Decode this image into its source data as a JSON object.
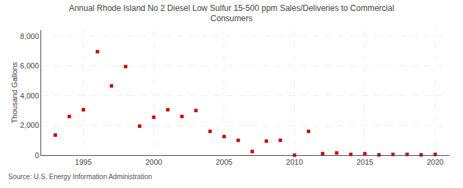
{
  "chart_data": {
    "type": "scatter",
    "title": "Annual Rhode Island No 2 Diesel Low Sulfur 15-500 ppm Sales/Deliveries to Commercial\nConsumers",
    "ylabel": "Thousand Gallons",
    "source": "Source: U.S. Energy Information Administration",
    "x": [
      1993,
      1994,
      1995,
      1996,
      1997,
      1998,
      1999,
      2000,
      2001,
      2002,
      2003,
      2004,
      2005,
      2006,
      2007,
      2008,
      2009,
      2010,
      2011,
      2012,
      2013,
      2014,
      2015,
      2016,
      2017,
      2018,
      2019,
      2020
    ],
    "values": [
      1350,
      2600,
      3050,
      6950,
      4650,
      5950,
      1950,
      2550,
      3050,
      2600,
      3000,
      1600,
      1250,
      1000,
      250,
      950,
      1000,
      0,
      1600,
      100,
      150,
      50,
      100,
      25,
      50,
      50,
      25,
      50
    ],
    "color": "#cc0000",
    "marker": "square",
    "xlim": [
      1992,
      2021
    ],
    "xticks": [
      1995,
      2000,
      2005,
      2010,
      2015,
      2020
    ],
    "ylim": [
      0,
      8400
    ],
    "yticks": [
      0,
      {
        "value": 2000,
        "label": "2,000"
      },
      {
        "value": 4000,
        "label": "4,000"
      },
      {
        "value": 6000,
        "label": "6,000"
      },
      {
        "value": 8000,
        "label": "8,000"
      }
    ],
    "grid": true
  }
}
